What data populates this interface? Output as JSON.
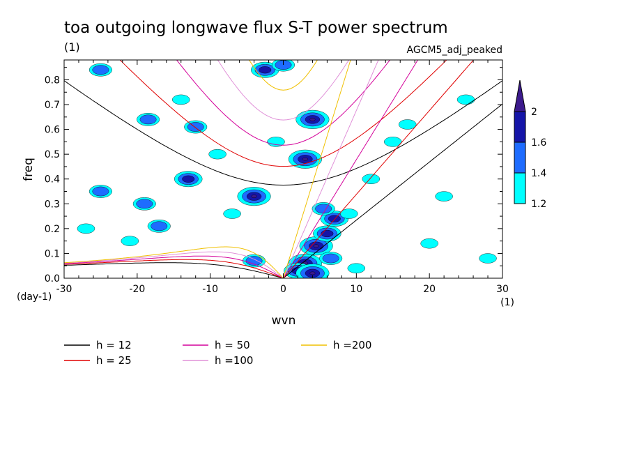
{
  "chart_data": {
    "type": "heatmap",
    "title": "toa outgoing longwave flux S-T power spectrum",
    "title_units": "(1)",
    "subtitle_right": "AGCM5_adj_peaked",
    "xlabel": "wvn",
    "ylabel": "freq",
    "x_units": "(1)",
    "y_units": "(day-1)",
    "xlim": [
      -30,
      30
    ],
    "ylim": [
      0,
      0.88
    ],
    "xticks": [
      -30,
      -20,
      -10,
      0,
      10,
      20,
      30
    ],
    "yticks": [
      0.0,
      0.1,
      0.2,
      0.3,
      0.4,
      0.5,
      0.6,
      0.7,
      0.8
    ],
    "xtick_labels": [
      "-30",
      "-20",
      "-10",
      "0",
      "10",
      "20",
      "30"
    ],
    "ytick_labels": [
      "0.0",
      "0.1",
      "0.2",
      "0.3",
      "0.4",
      "0.5",
      "0.6",
      "0.7",
      "0.8"
    ],
    "colorbar": {
      "levels": [
        1.2,
        1.4,
        1.6,
        2
      ],
      "labels": [
        "1.2",
        "1.4",
        "1.6",
        "2"
      ],
      "colors": [
        "#00ffff",
        "#1e6cff",
        "#1515a8",
        "#3c1a8c"
      ]
    },
    "dispersion_curves": [
      {
        "name": "h = 12",
        "h": 12,
        "color": "#000000"
      },
      {
        "name": "h = 25",
        "h": 25,
        "color": "#e00000"
      },
      {
        "name": "h = 50",
        "h": 50,
        "color": "#d4009a"
      },
      {
        "name": "h =100",
        "h": 100,
        "color": "#e090d8"
      },
      {
        "name": "h =200",
        "h": 200,
        "color": "#f0c000"
      }
    ],
    "blobs": [
      {
        "x": 3.0,
        "y": 0.06,
        "level": 4
      },
      {
        "x": 4.5,
        "y": 0.13,
        "level": 4
      },
      {
        "x": 6.0,
        "y": 0.18,
        "level": 3
      },
      {
        "x": 7.0,
        "y": 0.24,
        "level": 3
      },
      {
        "x": 5.5,
        "y": 0.28,
        "level": 2
      },
      {
        "x": 2.0,
        "y": 0.03,
        "level": 3
      },
      {
        "x": 4.0,
        "y": 0.02,
        "level": 4
      },
      {
        "x": 6.5,
        "y": 0.08,
        "level": 2
      },
      {
        "x": -4.0,
        "y": 0.33,
        "level": 4
      },
      {
        "x": 3.0,
        "y": 0.48,
        "level": 4
      },
      {
        "x": 4.0,
        "y": 0.64,
        "level": 4
      },
      {
        "x": -2.5,
        "y": 0.84,
        "level": 3
      },
      {
        "x": -13.0,
        "y": 0.4,
        "level": 3
      },
      {
        "x": -25.0,
        "y": 0.35,
        "level": 2
      },
      {
        "x": -19.0,
        "y": 0.3,
        "level": 2
      },
      {
        "x": -17.0,
        "y": 0.21,
        "level": 2
      },
      {
        "x": -18.5,
        "y": 0.64,
        "level": 2
      },
      {
        "x": -12.0,
        "y": 0.61,
        "level": 2
      },
      {
        "x": 0.0,
        "y": 0.86,
        "level": 2
      },
      {
        "x": -25.0,
        "y": 0.84,
        "level": 2
      },
      {
        "x": -4.0,
        "y": 0.07,
        "level": 2
      },
      {
        "x": 10.0,
        "y": 0.04,
        "level": 1
      },
      {
        "x": 15.0,
        "y": 0.55,
        "level": 1
      },
      {
        "x": 17.0,
        "y": 0.62,
        "level": 1
      },
      {
        "x": 12.0,
        "y": 0.4,
        "level": 1
      },
      {
        "x": -9.0,
        "y": 0.5,
        "level": 1
      },
      {
        "x": -27.0,
        "y": 0.2,
        "level": 1
      },
      {
        "x": -21.0,
        "y": 0.15,
        "level": 1
      },
      {
        "x": 28.0,
        "y": 0.08,
        "level": 1
      },
      {
        "x": 22.0,
        "y": 0.33,
        "level": 1
      },
      {
        "x": -7.0,
        "y": 0.26,
        "level": 1
      },
      {
        "x": 20.0,
        "y": 0.14,
        "level": 1
      },
      {
        "x": -14.0,
        "y": 0.72,
        "level": 1
      },
      {
        "x": 25.0,
        "y": 0.72,
        "level": 1
      },
      {
        "x": 9.0,
        "y": 0.26,
        "level": 1
      },
      {
        "x": -1.0,
        "y": 0.55,
        "level": 1
      }
    ]
  }
}
